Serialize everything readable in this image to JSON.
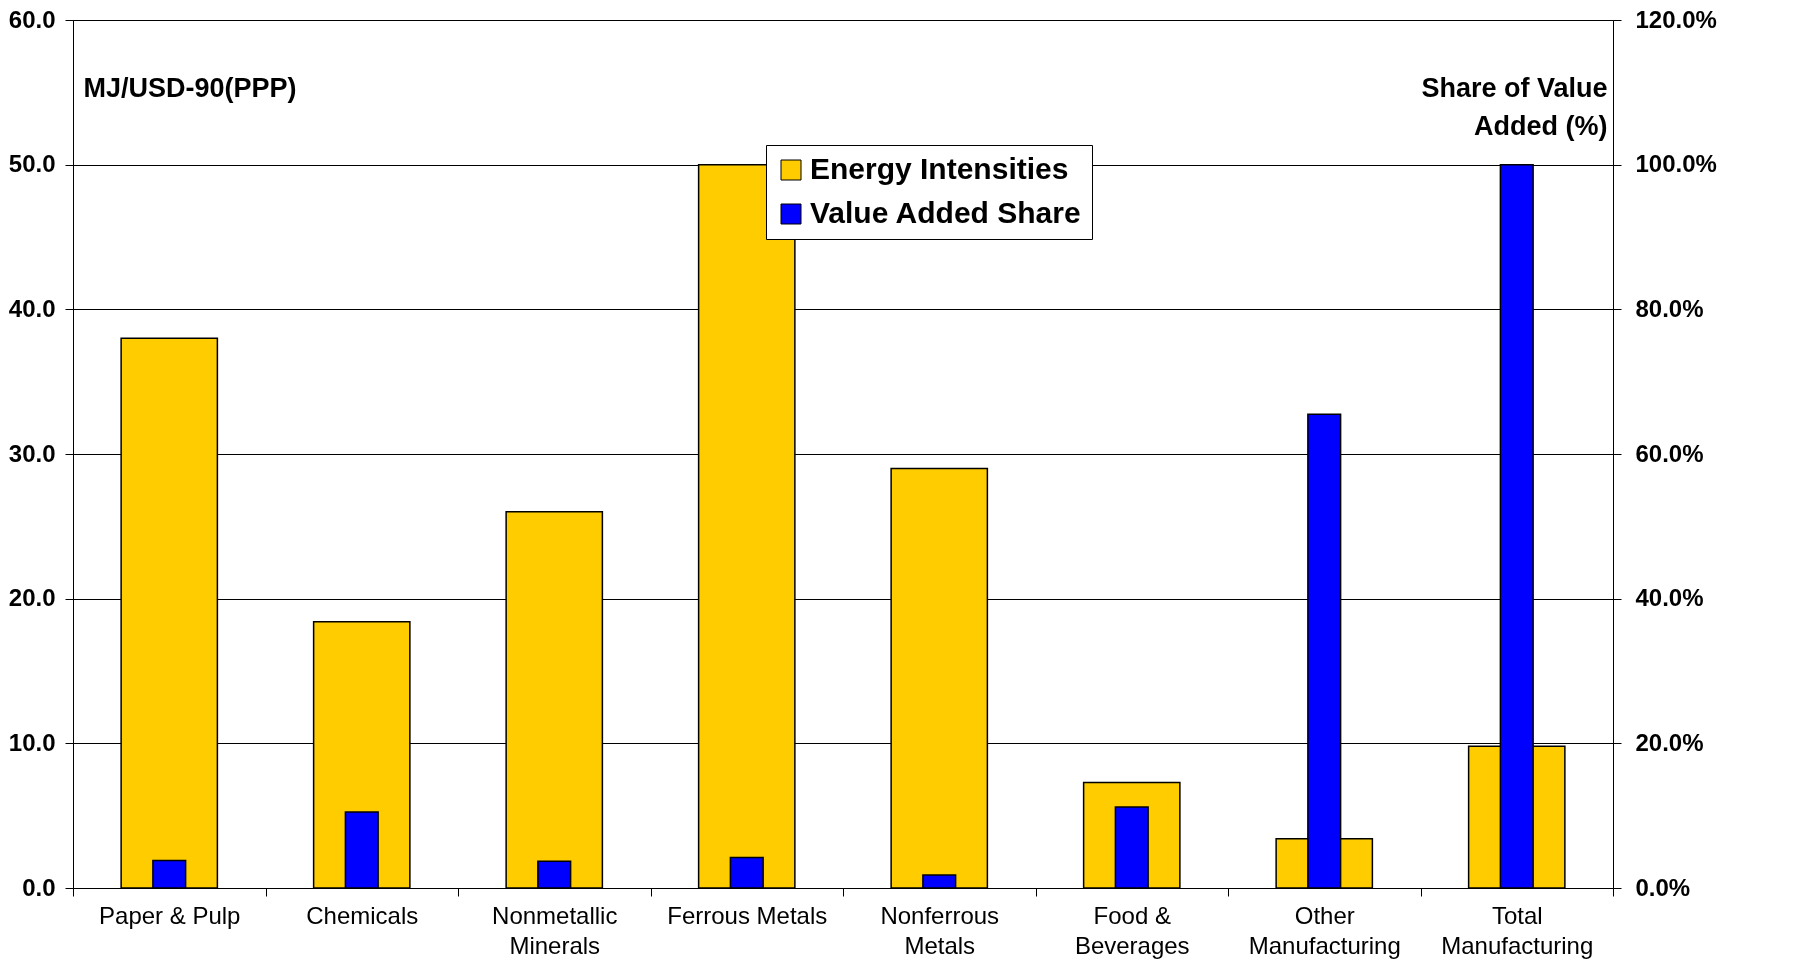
{
  "chart_data": {
    "type": "bar",
    "ylabel": "MJ/USD-90(PPP)",
    "y2label": "Share of Value Added (%)",
    "categories": [
      "Paper & Pulp",
      "Chemicals",
      "Nonmetallic Minerals",
      "Ferrous Metals",
      "Nonferrous Metals",
      "Food & Beverages",
      "Other Manufacturing",
      "Total Manufacturing"
    ],
    "series": [
      {
        "name": "Energy Intensities",
        "color": "#ffcc00",
        "values": [
          38.0,
          18.4,
          26.0,
          50.0,
          29.0,
          7.3,
          3.4,
          9.8
        ]
      },
      {
        "name": "Value Added Share",
        "color": "#0000ff",
        "axis": "y2",
        "values": [
          3.8,
          10.5,
          3.7,
          4.2,
          1.8,
          11.2,
          65.5,
          100
        ]
      }
    ],
    "ylim": [
      0,
      60
    ],
    "yticks": [
      {
        "value": 0,
        "label": "0.0"
      },
      {
        "value": 10,
        "label": "10.0"
      },
      {
        "value": 20,
        "label": "20.0"
      },
      {
        "value": 30,
        "label": "30.0"
      },
      {
        "value": 40,
        "label": "40.0"
      },
      {
        "value": 50,
        "label": "50.0"
      },
      {
        "value": 60,
        "label": "60.0"
      }
    ],
    "y2lim": [
      0,
      120
    ],
    "y2ticks": [
      {
        "value": 0,
        "label": "0.0%"
      },
      {
        "value": 20,
        "label": "20.0%"
      },
      {
        "value": 40,
        "label": "40.0%"
      },
      {
        "value": 60,
        "label": "60.0%"
      },
      {
        "value": 80,
        "label": "80.0%"
      },
      {
        "value": 100,
        "label": "100.0%"
      },
      {
        "value": 120,
        "label": "120.0%"
      }
    ],
    "grid": "y",
    "legend": "top"
  }
}
